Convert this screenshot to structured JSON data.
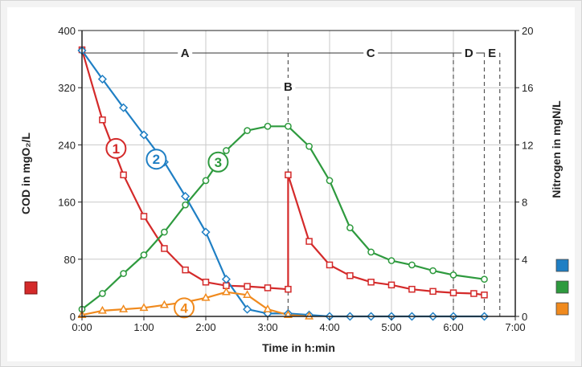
{
  "chart_data": {
    "type": "line",
    "xlabel": "Time in h:min",
    "ylabel_left": "COD in mgO₂/L",
    "ylabel_right": "Nitrogen in mgN/L",
    "x_ticks": [
      "0:00",
      "1:00",
      "2:00",
      "3:00",
      "4:00",
      "5:00",
      "6:00",
      "7:00"
    ],
    "y_left_ticks": [
      "0",
      "80",
      "160",
      "240",
      "320",
      "400"
    ],
    "y_right_ticks": [
      "0",
      "4",
      "8",
      "12",
      "16",
      "20"
    ],
    "xlim_hours": [
      0,
      7
    ],
    "ylim_left": [
      0,
      400
    ],
    "ylim_right": [
      0,
      20
    ],
    "grid": true,
    "phases": [
      {
        "label": "A",
        "start_h": 0,
        "end_h": 3.33
      },
      {
        "label": "B",
        "at_h": 3.33
      },
      {
        "label": "C",
        "start_h": 3.33,
        "end_h": 6.0
      },
      {
        "label": "D",
        "start_h": 6.0,
        "end_h": 6.5
      },
      {
        "label": "E",
        "start_h": 6.5,
        "end_h": 6.75
      }
    ],
    "legend": [
      {
        "color": "#d42a2a",
        "axis": "left"
      },
      {
        "color": "#1f7fc4",
        "axis": "right"
      },
      {
        "color": "#2e9a3e",
        "axis": "right"
      },
      {
        "color": "#f08a1e",
        "axis": "right"
      }
    ],
    "series": [
      {
        "label": "1",
        "axis": "left",
        "color": "#d42a2a",
        "marker": "square",
        "label_at": [
          0.55,
          235
        ],
        "x": [
          0,
          0.33,
          0.67,
          1.0,
          1.33,
          1.67,
          2.0,
          2.33,
          2.67,
          3.0,
          3.33,
          3.33,
          3.67,
          4.0,
          4.33,
          4.67,
          5.0,
          5.33,
          5.67,
          6.0,
          6.33,
          6.5
        ],
        "y": [
          373,
          275,
          198,
          140,
          95,
          65,
          48,
          43,
          42,
          40,
          38,
          198,
          105,
          72,
          57,
          48,
          44,
          38,
          35,
          33,
          32,
          30
        ]
      },
      {
        "label": "2",
        "axis": "right",
        "color": "#1f7fc4",
        "marker": "diamond",
        "label_at": [
          1.2,
          11.0
        ],
        "x": [
          0,
          0.33,
          0.67,
          1.0,
          1.33,
          1.67,
          2.0,
          2.33,
          2.67,
          3.0,
          3.33,
          3.67,
          4.0,
          4.33,
          4.67,
          5.0,
          5.33,
          5.67,
          6.0,
          6.5
        ],
        "y": [
          18.6,
          16.6,
          14.6,
          12.7,
          10.8,
          8.4,
          5.9,
          2.6,
          0.5,
          0.2,
          0.2,
          0.1,
          0,
          0,
          0,
          0,
          0,
          0,
          0,
          0
        ]
      },
      {
        "label": "3",
        "axis": "right",
        "color": "#2e9a3e",
        "marker": "circle",
        "label_at": [
          2.2,
          10.8
        ],
        "x": [
          0,
          0.33,
          0.67,
          1.0,
          1.33,
          1.67,
          2.0,
          2.33,
          2.67,
          3.0,
          3.33,
          3.67,
          4.0,
          4.33,
          4.67,
          5.0,
          5.33,
          5.67,
          6.0,
          6.5
        ],
        "y": [
          0.5,
          1.6,
          3.0,
          4.3,
          5.9,
          7.8,
          9.5,
          11.6,
          13.0,
          13.3,
          13.3,
          11.9,
          9.5,
          6.2,
          4.5,
          3.9,
          3.6,
          3.2,
          2.9,
          2.6
        ]
      },
      {
        "label": "4",
        "axis": "right",
        "color": "#f08a1e",
        "marker": "triangle",
        "label_at": [
          1.65,
          0.6
        ],
        "x": [
          0,
          0.33,
          0.67,
          1.0,
          1.33,
          1.67,
          2.0,
          2.33,
          2.67,
          3.0,
          3.33,
          3.67
        ],
        "y": [
          0.1,
          0.4,
          0.5,
          0.6,
          0.8,
          1.0,
          1.3,
          1.7,
          1.5,
          0.5,
          0.1,
          0
        ]
      }
    ]
  }
}
